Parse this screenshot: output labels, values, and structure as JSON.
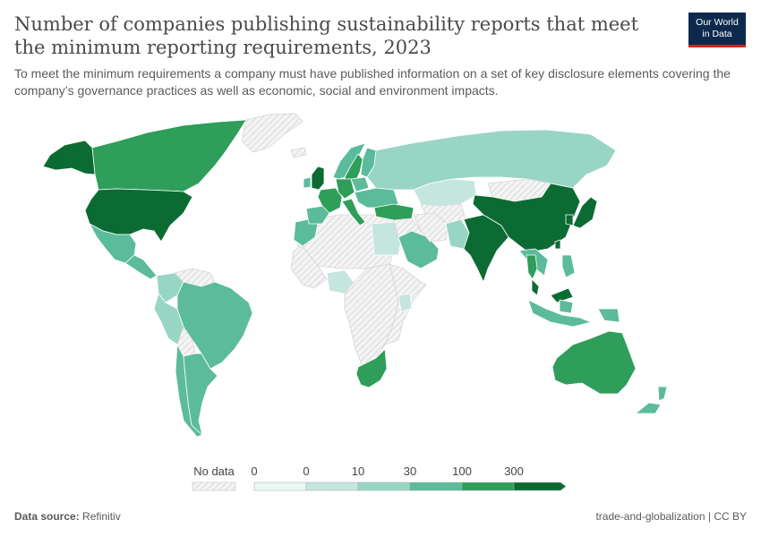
{
  "header": {
    "title": "Number of companies publishing sustainability reports that meet the minimum reporting requirements, 2023",
    "subtitle": "To meet the minimum requirements a company must have published information on a set of key disclosure elements covering the company’s governance practices as well as economic, social and environment impacts."
  },
  "logo": {
    "line1": "Our World",
    "line2": "in Data"
  },
  "legend": {
    "no_data_label": "No data",
    "bins": [
      {
        "label": "0",
        "color": "#e9f7f5"
      },
      {
        "label": "0",
        "color": "#c4e6de"
      },
      {
        "label": "10",
        "color": "#98d5c5"
      },
      {
        "label": "30",
        "color": "#5bbb9b"
      },
      {
        "label": "100",
        "color": "#2e9e5a"
      },
      {
        "label": "300",
        "color": "#0c6b33"
      }
    ]
  },
  "colors": {
    "no_data_fill": "#f4f4f4",
    "no_data_hatch": "#cfcfcf",
    "border": "#ffffff"
  },
  "regions": [
    {
      "name": "Canada",
      "bin": 4
    },
    {
      "name": "Alaska (United States)",
      "bin": 5
    },
    {
      "name": "Greenland",
      "bin": -1
    },
    {
      "name": "United States",
      "bin": 5
    },
    {
      "name": "Mexico",
      "bin": 3
    },
    {
      "name": "Central America",
      "bin": 3
    },
    {
      "name": "Colombia",
      "bin": 2
    },
    {
      "name": "Venezuela",
      "bin": -1
    },
    {
      "name": "Peru",
      "bin": 2
    },
    {
      "name": "Brazil",
      "bin": 3
    },
    {
      "name": "Bolivia",
      "bin": -1
    },
    {
      "name": "Chile",
      "bin": 3
    },
    {
      "name": "Argentina",
      "bin": 3
    },
    {
      "name": "North Africa",
      "bin": -1
    },
    {
      "name": "Morocco",
      "bin": 3
    },
    {
      "name": "West Africa",
      "bin": -1
    },
    {
      "name": "Nigeria",
      "bin": 1
    },
    {
      "name": "Central Africa",
      "bin": -1
    },
    {
      "name": "East Africa",
      "bin": -1
    },
    {
      "name": "Kenya",
      "bin": 1
    },
    {
      "name": "South Africa",
      "bin": 4
    },
    {
      "name": "Egypt",
      "bin": 1
    },
    {
      "name": "Iceland",
      "bin": -1
    },
    {
      "name": "Norway",
      "bin": 3
    },
    {
      "name": "Sweden",
      "bin": 4
    },
    {
      "name": "Finland",
      "bin": 3
    },
    {
      "name": "United Kingdom",
      "bin": 5
    },
    {
      "name": "Ireland",
      "bin": 3
    },
    {
      "name": "Iberia",
      "bin": 3
    },
    {
      "name": "France",
      "bin": 4
    },
    {
      "name": "Germany",
      "bin": 4
    },
    {
      "name": "Italy",
      "bin": 4
    },
    {
      "name": "Eastern Europe",
      "bin": 3
    },
    {
      "name": "Poland",
      "bin": 3
    },
    {
      "name": "Turkey",
      "bin": 4
    },
    {
      "name": "Russia",
      "bin": 2
    },
    {
      "name": "Kazakhstan",
      "bin": 1
    },
    {
      "name": "Central Asia",
      "bin": -1
    },
    {
      "name": "Mongolia",
      "bin": -1
    },
    {
      "name": "Middle East",
      "bin": -1
    },
    {
      "name": "Saudi Arabia",
      "bin": 3
    },
    {
      "name": "Iran",
      "bin": -1
    },
    {
      "name": "Pakistan",
      "bin": 2
    },
    {
      "name": "India",
      "bin": 5
    },
    {
      "name": "China",
      "bin": 5
    },
    {
      "name": "Japan",
      "bin": 5
    },
    {
      "name": "South Korea",
      "bin": 5
    },
    {
      "name": "Taiwan",
      "bin": 5
    },
    {
      "name": "Southeast Asia",
      "bin": 3
    },
    {
      "name": "Thailand",
      "bin": 4
    },
    {
      "name": "Malaysia",
      "bin": 5
    },
    {
      "name": "Philippines",
      "bin": 3
    },
    {
      "name": "Indonesia",
      "bin": 3
    },
    {
      "name": "Papua New Guinea",
      "bin": 3
    },
    {
      "name": "Australia",
      "bin": 4
    },
    {
      "name": "New Zealand",
      "bin": 3
    }
  ],
  "footer": {
    "source_label": "Data source:",
    "source_value": "Refinitiv",
    "right": "trade-and-globalization | CC BY"
  }
}
